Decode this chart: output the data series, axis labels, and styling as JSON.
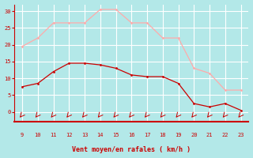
{
  "x_labels": [
    "9",
    "10",
    "11",
    "12",
    "13",
    "14",
    "15",
    "16",
    "17",
    "18",
    "19",
    "20",
    "21",
    "22",
    "23"
  ],
  "x_values": [
    9,
    10,
    11,
    12,
    13,
    14,
    15,
    16,
    17,
    18,
    19,
    20,
    21,
    22,
    23
  ],
  "y_mean": [
    7.5,
    8.5,
    12,
    14.5,
    14.5,
    14,
    13,
    11,
    10.5,
    10.5,
    8.5,
    2.5,
    1.5,
    2.5,
    0.5
  ],
  "y_gust": [
    19.5,
    22,
    26.5,
    26.5,
    26.5,
    30.5,
    30.5,
    26.5,
    26.5,
    22,
    22,
    13,
    11.5,
    6.5,
    6.5
  ],
  "color_mean": "#cc0000",
  "color_gust": "#ffaaaa",
  "background_color": "#b3e8e8",
  "grid_color": "#d0d0d0",
  "xlabel": "Vent moyen/en rafales ( km/h )",
  "ylim": [
    -3,
    32
  ],
  "xlim": [
    8.5,
    23.5
  ],
  "yticks": [
    0,
    5,
    10,
    15,
    20,
    25,
    30
  ],
  "xlabel_color": "#cc0000",
  "tick_color": "#cc0000",
  "spine_color": "#cc0000",
  "arrow_color": "#cc0000"
}
